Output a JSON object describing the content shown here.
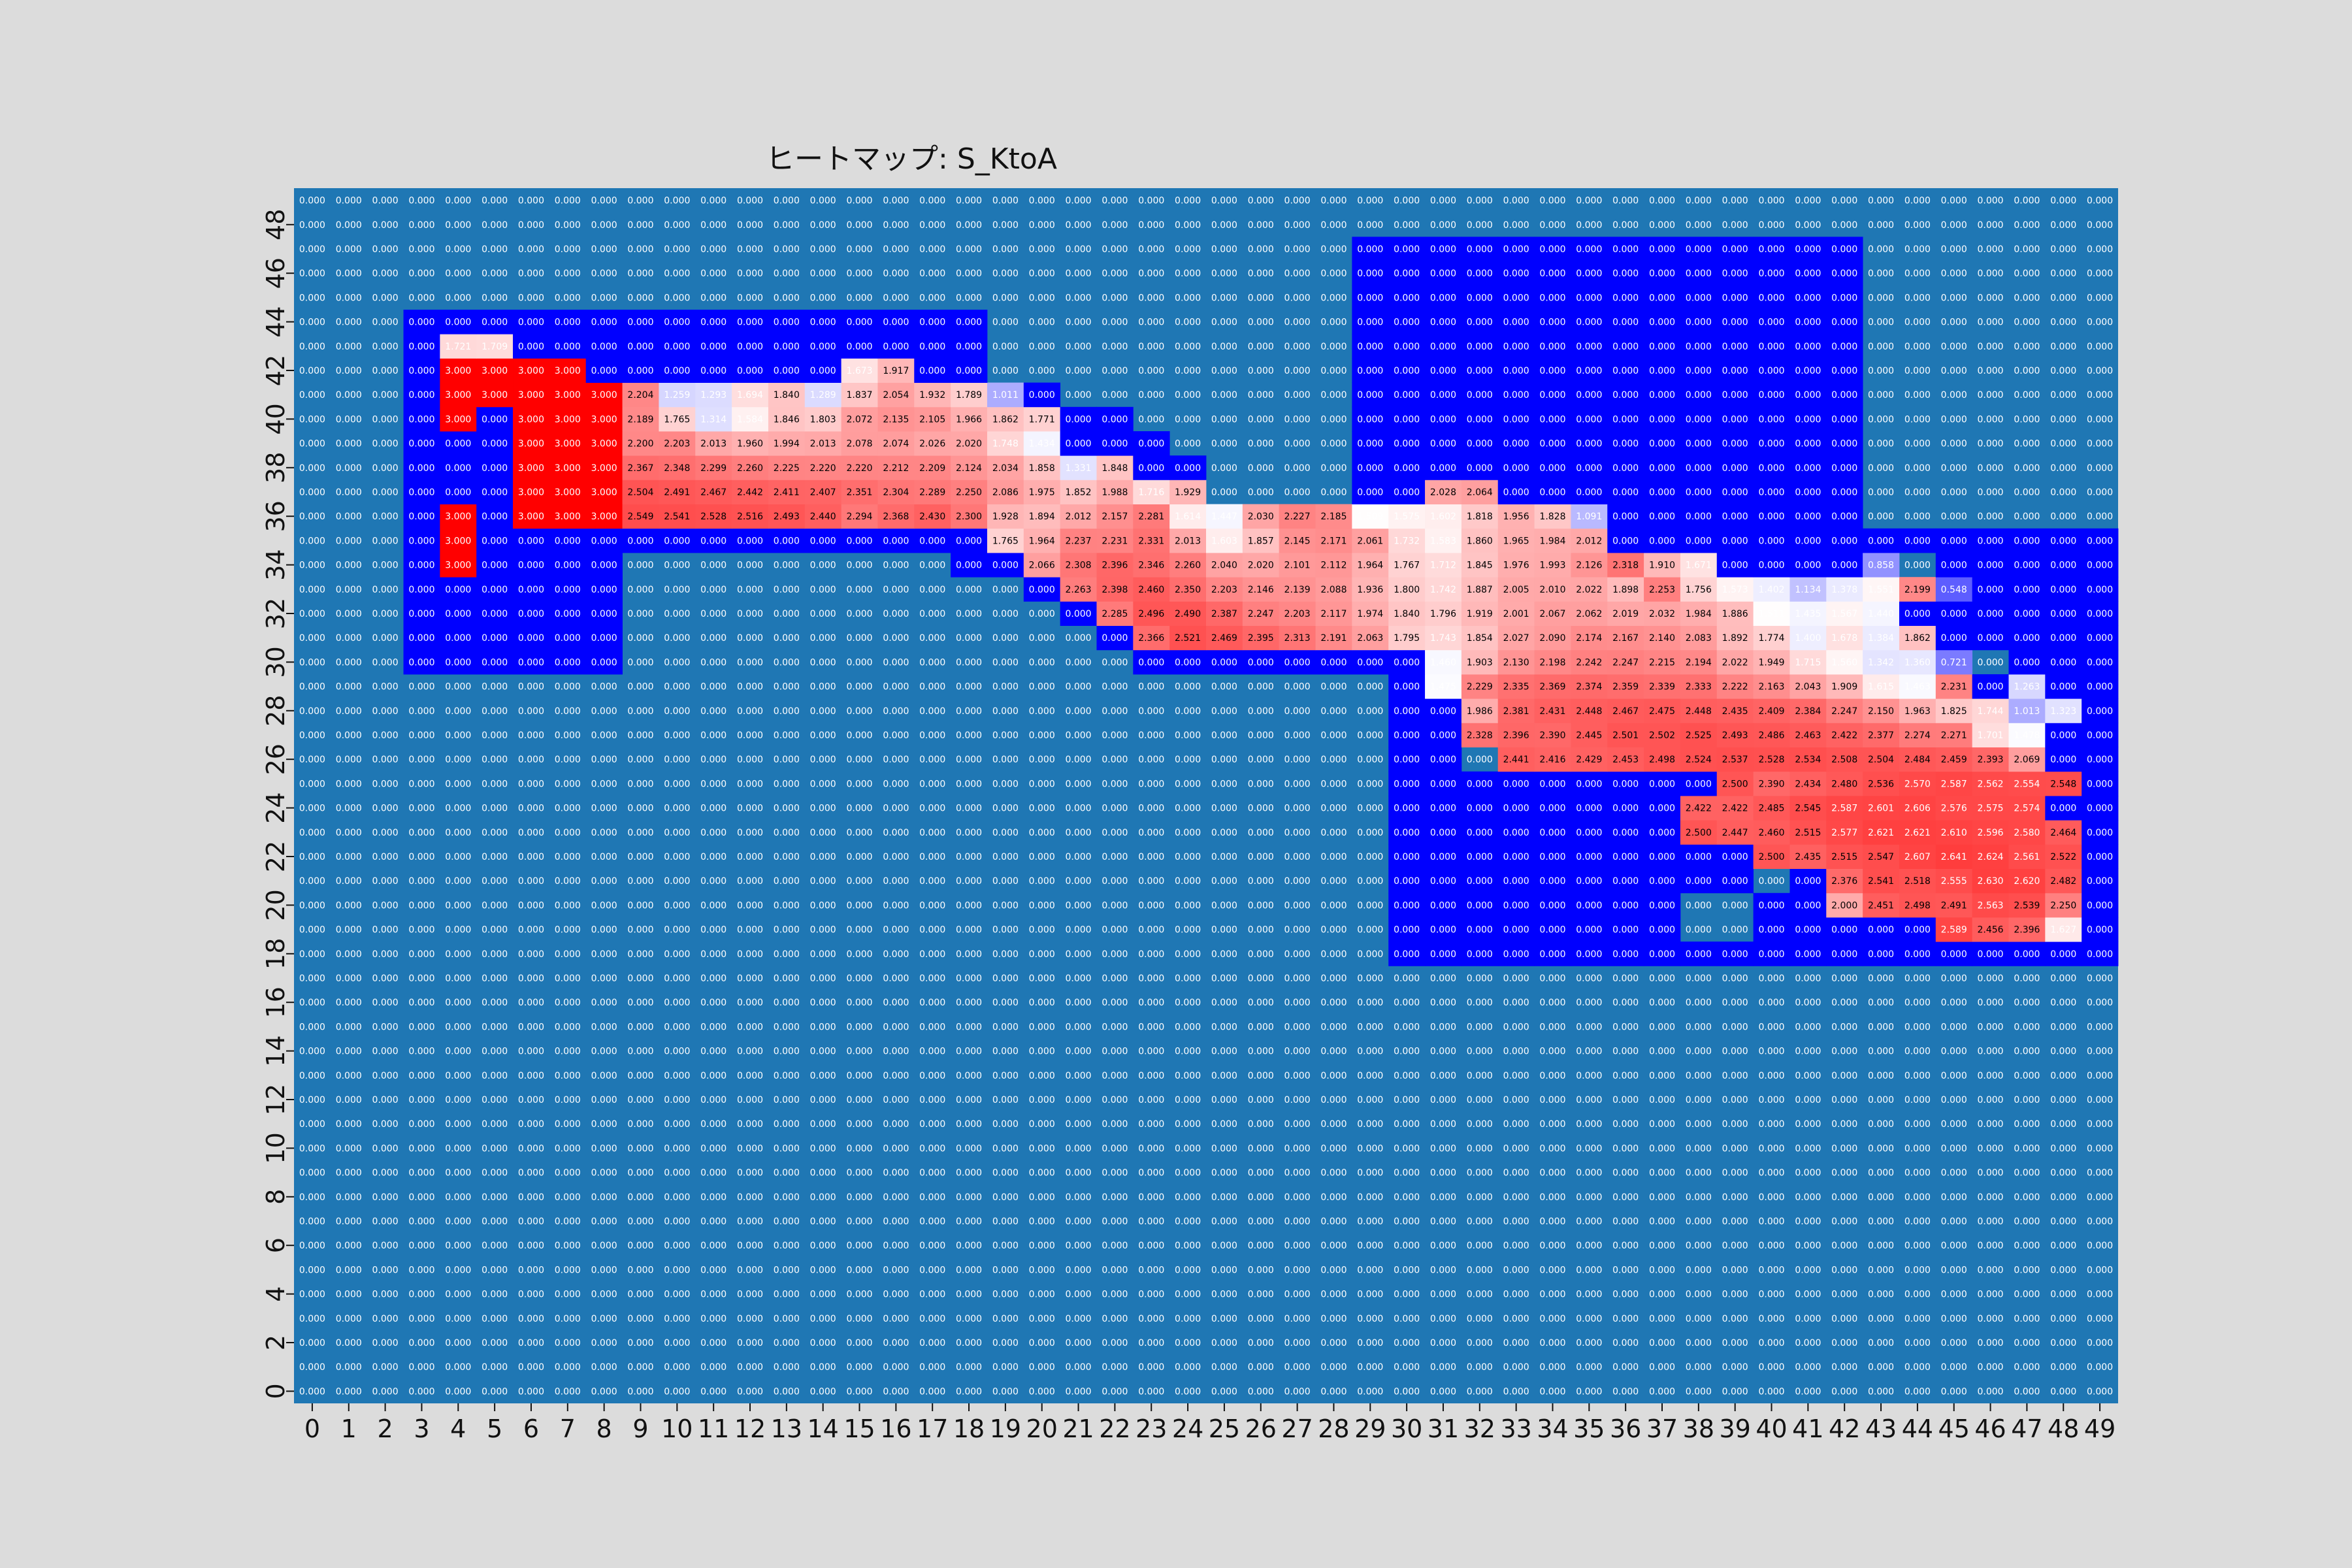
{
  "chart_data": {
    "type": "heatmap",
    "title": "ヒートマップ: S_KtoA",
    "xlabel": "",
    "ylabel": "",
    "x_ticks": [
      "0",
      "1",
      "2",
      "3",
      "4",
      "5",
      "6",
      "7",
      "8",
      "9",
      "10",
      "11",
      "12",
      "13",
      "14",
      "15",
      "16",
      "17",
      "18",
      "19",
      "20",
      "21",
      "22",
      "23",
      "24",
      "25",
      "26",
      "27",
      "28",
      "29",
      "30",
      "31",
      "32",
      "33",
      "34",
      "35",
      "36",
      "37",
      "38",
      "39",
      "40",
      "41",
      "42",
      "43",
      "44",
      "45",
      "46",
      "47",
      "48",
      "49"
    ],
    "y_ticks": [
      "0",
      "2",
      "4",
      "6",
      "8",
      "10",
      "12",
      "14",
      "16",
      "18",
      "20",
      "22",
      "24",
      "26",
      "28",
      "30",
      "32",
      "34",
      "36",
      "38",
      "40",
      "42",
      "44",
      "46",
      "48"
    ],
    "grid": false,
    "legend": "none",
    "value_range": [
      0,
      3
    ],
    "colors": {
      "background": "#1f77b4",
      "low": "#0000ff",
      "mid": "#ffffff",
      "high": "#ff0000",
      "cell_text_light": "#ffffff",
      "cell_text_dark": "#000000"
    },
    "colormap_note": "masked (zero background) cells drawn in background blue; active cells on a blue-white-red scale",
    "cell_format": "0.000",
    "mask_regions": [
      {
        "x0": 3,
        "x1": 8,
        "y0": 30,
        "y1": 44
      },
      {
        "x0": 9,
        "x1": 13,
        "y0": 41,
        "y1": 44
      },
      {
        "x0": 14,
        "x1": 18,
        "y0": 42,
        "y1": 44
      },
      {
        "x0": 9,
        "x1": 13,
        "y0": 35,
        "y1": 35
      },
      {
        "x0": 14,
        "x1": 18,
        "y0": 35,
        "y1": 35
      },
      {
        "x0": 18,
        "x1": 20,
        "y0": 34,
        "y1": 34
      },
      {
        "x0": 19,
        "x1": 20,
        "y0": 41,
        "y1": 41
      },
      {
        "x0": 20,
        "x1": 21,
        "y0": 33,
        "y1": 33
      },
      {
        "x0": 21,
        "x1": 21,
        "y0": 32,
        "y1": 32
      },
      {
        "x0": 22,
        "x1": 22,
        "y0": 31,
        "y1": 31
      },
      {
        "x0": 21,
        "x1": 22,
        "y0": 40,
        "y1": 40
      },
      {
        "x0": 21,
        "x1": 23,
        "y0": 39,
        "y1": 39
      },
      {
        "x0": 23,
        "x1": 24,
        "y0": 38,
        "y1": 38
      },
      {
        "x0": 23,
        "x1": 29,
        "y0": 30,
        "y1": 30
      },
      {
        "x0": 29,
        "x1": 42,
        "y0": 38,
        "y1": 47
      },
      {
        "x0": 29,
        "x1": 30,
        "y0": 30,
        "y1": 38
      },
      {
        "x0": 33,
        "x1": 42,
        "y0": 37,
        "y1": 37
      },
      {
        "x0": 34,
        "x1": 42,
        "y0": 36,
        "y1": 36
      },
      {
        "x0": 36,
        "x1": 49,
        "y0": 35,
        "y1": 35
      },
      {
        "x0": 38,
        "x1": 42,
        "y0": 34,
        "y1": 34
      },
      {
        "x0": 45,
        "x1": 49,
        "y0": 34,
        "y1": 34
      },
      {
        "x0": 44,
        "x1": 45,
        "y0": 32,
        "y1": 32
      },
      {
        "x0": 46,
        "x1": 49,
        "y0": 32,
        "y1": 33
      },
      {
        "x0": 45,
        "x1": 49,
        "y0": 31,
        "y1": 31
      },
      {
        "x0": 47,
        "x1": 49,
        "y0": 30,
        "y1": 30
      },
      {
        "x0": 46,
        "x1": 49,
        "y0": 29,
        "y1": 29
      },
      {
        "x0": 30,
        "x1": 31,
        "y0": 18,
        "y1": 29
      },
      {
        "x0": 30,
        "x1": 49,
        "y0": 18,
        "y1": 18
      },
      {
        "x0": 32,
        "x1": 38,
        "y0": 25,
        "y1": 25
      },
      {
        "x0": 32,
        "x1": 37,
        "y0": 19,
        "y1": 24
      },
      {
        "x0": 38,
        "x1": 39,
        "y0": 21,
        "y1": 22
      },
      {
        "x0": 40,
        "x1": 41,
        "y0": 19,
        "y1": 20
      },
      {
        "x0": 41,
        "x1": 41,
        "y0": 21,
        "y1": 21
      },
      {
        "x0": 42,
        "x1": 44,
        "y0": 19,
        "y1": 19
      },
      {
        "x0": 48,
        "x1": 49,
        "y0": 19,
        "y1": 28
      }
    ],
    "values": [
      {
        "y": 43,
        "x": [
          4,
          5
        ],
        "values": [
          1.721,
          1.709
        ]
      },
      {
        "y": 42,
        "x": [
          4,
          5,
          6,
          7,
          15,
          16
        ],
        "values": [
          3.0,
          3.0,
          3.0,
          3.0,
          1.673,
          1.917
        ]
      },
      {
        "y": 41,
        "x": [
          4,
          5,
          6,
          7,
          8,
          9,
          10,
          11,
          12,
          13,
          14,
          15,
          16,
          17,
          18,
          19
        ],
        "values": [
          3.0,
          3.0,
          3.0,
          3.0,
          3.0,
          2.204,
          1.259,
          1.293,
          1.694,
          1.84,
          1.289,
          1.837,
          2.054,
          1.932,
          1.789,
          1.011
        ]
      },
      {
        "y": 40,
        "x": [
          4,
          6,
          7,
          8,
          9,
          10,
          11,
          12,
          13,
          14,
          15,
          16,
          17,
          18,
          19,
          20
        ],
        "values": [
          3.0,
          3.0,
          3.0,
          3.0,
          2.189,
          1.765,
          1.314,
          1.584,
          1.846,
          1.803,
          2.072,
          2.135,
          2.105,
          1.966,
          1.862,
          1.771
        ]
      },
      {
        "y": 39,
        "x": [
          6,
          7,
          8,
          9,
          10,
          11,
          12,
          13,
          14,
          15,
          16,
          17,
          18,
          19,
          20
        ],
        "values": [
          3.0,
          3.0,
          3.0,
          2.2,
          2.203,
          2.013,
          1.96,
          1.994,
          2.013,
          2.078,
          2.074,
          2.026,
          2.02,
          1.748,
          1.434
        ]
      },
      {
        "y": 38,
        "x": [
          6,
          7,
          8,
          9,
          10,
          11,
          12,
          13,
          14,
          15,
          16,
          17,
          18,
          19,
          20,
          21,
          22
        ],
        "values": [
          3.0,
          3.0,
          3.0,
          2.367,
          2.348,
          2.299,
          2.26,
          2.225,
          2.22,
          2.22,
          2.212,
          2.209,
          2.124,
          2.034,
          1.858,
          1.331,
          1.848
        ]
      },
      {
        "y": 37,
        "x": [
          6,
          7,
          8,
          9,
          10,
          11,
          12,
          13,
          14,
          15,
          16,
          17,
          18,
          19,
          20,
          21,
          22,
          23,
          24,
          31,
          32
        ],
        "values": [
          3.0,
          3.0,
          3.0,
          2.504,
          2.491,
          2.467,
          2.442,
          2.411,
          2.407,
          2.351,
          2.304,
          2.289,
          2.25,
          2.086,
          1.975,
          1.852,
          1.988,
          1.716,
          1.929,
          2.028,
          2.064
        ]
      },
      {
        "y": 36,
        "x": [
          4,
          6,
          7,
          8,
          9,
          10,
          11,
          12,
          13,
          14,
          15,
          16,
          17,
          18,
          19,
          20,
          21,
          22,
          23,
          24,
          25,
          26,
          27,
          28,
          29,
          30,
          31,
          32,
          33,
          34,
          35
        ],
        "values": [
          3.0,
          3.0,
          3.0,
          3.0,
          2.549,
          2.541,
          2.528,
          2.516,
          2.493,
          2.44,
          2.294,
          2.368,
          2.43,
          2.3,
          1.928,
          1.894,
          2.012,
          2.157,
          2.281,
          1.614,
          1.447,
          2.03,
          2.227,
          2.185,
          1.509,
          1.575,
          1.602,
          1.818,
          1.956,
          1.828,
          1.091
        ]
      },
      {
        "y": 35,
        "x": [
          4,
          19,
          20,
          21,
          22,
          23,
          24,
          25,
          26,
          27,
          28,
          29,
          30,
          31,
          32,
          33,
          34,
          35
        ],
        "values": [
          3.0,
          1.765,
          1.964,
          2.237,
          2.231,
          2.331,
          2.013,
          1.603,
          1.857,
          2.145,
          2.171,
          2.061,
          1.732,
          1.583,
          1.86,
          1.965,
          1.984,
          2.012
        ]
      },
      {
        "y": 34,
        "x": [
          4,
          20,
          21,
          22,
          23,
          24,
          25,
          26,
          27,
          28,
          29,
          30,
          31,
          32,
          33,
          34,
          35,
          36,
          37,
          38,
          43
        ],
        "values": [
          3.0,
          2.066,
          2.308,
          2.396,
          2.346,
          2.26,
          2.04,
          2.02,
          2.101,
          2.112,
          1.964,
          1.767,
          1.712,
          1.845,
          1.976,
          1.993,
          2.126,
          2.318,
          1.91,
          1.671,
          0.858
        ]
      },
      {
        "y": 33,
        "x": [
          21,
          22,
          23,
          24,
          25,
          26,
          27,
          28,
          29,
          30,
          31,
          32,
          33,
          34,
          35,
          36,
          37,
          38,
          39,
          40,
          41,
          42,
          43,
          44,
          45
        ],
        "values": [
          2.263,
          2.398,
          2.46,
          2.35,
          2.203,
          2.146,
          2.139,
          2.088,
          1.936,
          1.8,
          1.742,
          1.887,
          2.005,
          2.01,
          2.022,
          1.898,
          2.253,
          1.756,
          1.573,
          1.402,
          1.134,
          1.378,
          1.551,
          2.199,
          0.548
        ]
      },
      {
        "y": 32,
        "x": [
          22,
          23,
          24,
          25,
          26,
          27,
          28,
          29,
          30,
          31,
          32,
          33,
          34,
          35,
          36,
          37,
          38,
          39,
          40,
          41,
          42,
          43
        ],
        "values": [
          2.285,
          2.496,
          2.49,
          2.387,
          2.247,
          2.203,
          2.117,
          1.974,
          1.84,
          1.796,
          1.919,
          2.001,
          2.067,
          2.062,
          2.019,
          2.032,
          1.984,
          1.886,
          1.511,
          1.435,
          1.567,
          1.44
        ]
      },
      {
        "y": 31,
        "x": [
          23,
          24,
          25,
          26,
          27,
          28,
          29,
          30,
          31,
          32,
          33,
          34,
          35,
          36,
          37,
          38,
          39,
          40,
          41,
          42,
          43,
          44
        ],
        "values": [
          2.366,
          2.521,
          2.469,
          2.395,
          2.313,
          2.191,
          2.063,
          1.795,
          1.743,
          1.854,
          2.027,
          2.09,
          2.174,
          2.167,
          2.14,
          2.083,
          1.892,
          1.774,
          1.4,
          1.678,
          1.384,
          1.862
        ]
      },
      {
        "y": 30,
        "x": [
          31,
          32,
          33,
          34,
          35,
          36,
          37,
          38,
          39,
          40,
          41,
          42,
          43,
          44,
          45
        ],
        "values": [
          1.46,
          1.903,
          2.13,
          2.198,
          2.242,
          2.247,
          2.215,
          2.194,
          2.022,
          1.949,
          1.715,
          1.56,
          1.342,
          1.36,
          0.721
        ]
      },
      {
        "y": 29,
        "x": [
          31,
          32,
          33,
          34,
          35,
          36,
          37,
          38,
          39,
          40,
          41,
          42,
          43,
          44,
          45,
          47
        ],
        "values": [
          1.475,
          2.229,
          2.335,
          2.369,
          2.374,
          2.359,
          2.339,
          2.333,
          2.222,
          2.163,
          2.043,
          1.909,
          1.615,
          1.463,
          2.231,
          1.263
        ]
      },
      {
        "y": 28,
        "x": [
          32,
          33,
          34,
          35,
          36,
          37,
          38,
          39,
          40,
          41,
          42,
          43,
          44,
          45,
          46,
          47,
          48
        ],
        "values": [
          1.986,
          2.381,
          2.431,
          2.448,
          2.467,
          2.475,
          2.448,
          2.435,
          2.409,
          2.384,
          2.247,
          2.15,
          1.963,
          1.825,
          1.744,
          1.013,
          1.323
        ]
      },
      {
        "y": 27,
        "x": [
          32,
          33,
          34,
          35,
          36,
          37,
          38,
          39,
          40,
          41,
          42,
          43,
          44,
          45,
          46,
          47
        ],
        "values": [
          2.328,
          2.396,
          2.39,
          2.445,
          2.501,
          2.502,
          2.525,
          2.493,
          2.486,
          2.463,
          2.422,
          2.377,
          2.274,
          2.271,
          1.701,
          1.478
        ]
      },
      {
        "y": 26,
        "x": [
          33,
          34,
          35,
          36,
          37,
          38,
          39,
          40,
          41,
          42,
          43,
          44,
          45,
          46,
          47
        ],
        "values": [
          2.441,
          2.416,
          2.429,
          2.453,
          2.498,
          2.524,
          2.537,
          2.528,
          2.534,
          2.508,
          2.504,
          2.484,
          2.459,
          2.393,
          2.069
        ]
      },
      {
        "y": 25,
        "x": [
          39,
          40,
          41,
          42,
          43,
          44,
          45,
          46,
          47,
          48
        ],
        "values": [
          2.5,
          2.39,
          2.434,
          2.48,
          2.536,
          2.57,
          2.587,
          2.562,
          2.554,
          2.548
        ]
      },
      {
        "y": 24,
        "x": [
          38,
          39,
          40,
          41,
          42,
          43,
          44,
          45,
          46,
          47
        ],
        "values": [
          2.422,
          2.422,
          2.485,
          2.545,
          2.587,
          2.601,
          2.606,
          2.576,
          2.575,
          2.574
        ]
      },
      {
        "y": 23,
        "x": [
          38,
          39,
          40,
          41,
          42,
          43,
          44,
          45,
          46,
          47,
          48
        ],
        "values": [
          2.5,
          2.447,
          2.46,
          2.515,
          2.577,
          2.621,
          2.621,
          2.61,
          2.596,
          2.58,
          2.464
        ]
      },
      {
        "y": 22,
        "x": [
          40,
          41,
          42,
          43,
          44,
          45,
          46,
          47,
          48
        ],
        "values": [
          2.5,
          2.435,
          2.515,
          2.547,
          2.607,
          2.641,
          2.624,
          2.561,
          2.522
        ]
      },
      {
        "y": 21,
        "x": [
          42,
          43,
          44,
          45,
          46,
          47,
          48
        ],
        "values": [
          2.376,
          2.541,
          2.518,
          2.555,
          2.63,
          2.62,
          2.482
        ]
      },
      {
        "y": 20,
        "x": [
          42,
          43,
          44,
          45,
          46,
          47,
          48
        ],
        "values": [
          2.0,
          2.451,
          2.498,
          2.491,
          2.563,
          2.539,
          2.25
        ]
      },
      {
        "y": 19,
        "x": [
          45,
          46,
          47,
          48
        ],
        "values": [
          2.589,
          2.456,
          2.396,
          1.627
        ]
      }
    ]
  }
}
